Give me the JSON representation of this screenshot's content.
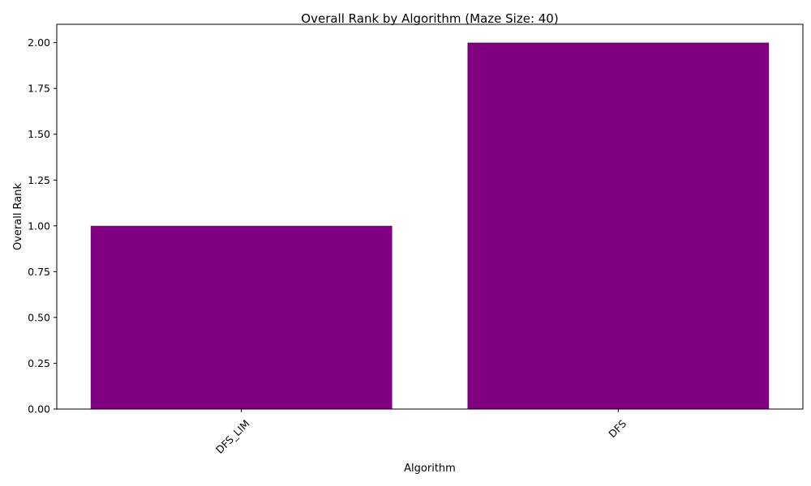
{
  "chart_data": {
    "type": "bar",
    "title": "Overall Rank by Algorithm (Maze Size: 40)",
    "xlabel": "Algorithm",
    "ylabel": "Overall Rank",
    "categories": [
      "DFS_LIM",
      "DFS"
    ],
    "values": [
      1,
      2
    ],
    "ylim": [
      0,
      2.1
    ],
    "yticks": [
      0,
      0.25,
      0.5,
      0.75,
      1.0,
      1.25,
      1.5,
      1.75,
      2.0
    ],
    "ytick_labels": [
      "0.00",
      "0.25",
      "0.50",
      "0.75",
      "1.00",
      "1.25",
      "1.50",
      "1.75",
      "2.00"
    ],
    "xtick_rotation": 45,
    "bar_color": "#800080",
    "grid": false,
    "legend": "none"
  }
}
